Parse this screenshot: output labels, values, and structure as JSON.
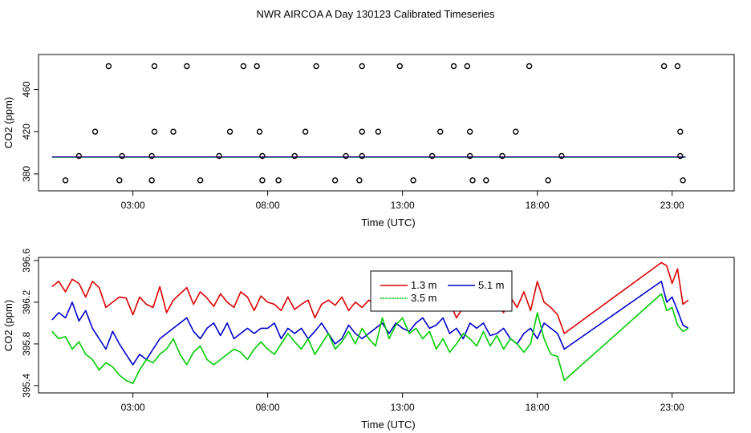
{
  "title": "NWR AIRCOA A  Day 130123  Calibrated Timeseries",
  "chart_data": [
    {
      "type": "scatter",
      "xlabel": "Time (UTC)",
      "ylabel": "CO2 (ppm)",
      "xlim": [
        -0.5,
        25.3
      ],
      "ylim": [
        364,
        493
      ],
      "x_ticks": [
        3,
        8,
        13,
        18,
        23
      ],
      "x_tick_labels": [
        "03:00",
        "08:00",
        "13:00",
        "18:00",
        "23:00"
      ],
      "y_ticks": [
        380,
        420,
        460
      ],
      "y_tick_labels": [
        "380",
        "420",
        "460"
      ],
      "points": [
        {
          "x": 2.1,
          "y": 482
        },
        {
          "x": 3.8,
          "y": 482
        },
        {
          "x": 5.0,
          "y": 482
        },
        {
          "x": 7.1,
          "y": 482
        },
        {
          "x": 7.6,
          "y": 482
        },
        {
          "x": 9.8,
          "y": 482
        },
        {
          "x": 11.5,
          "y": 482
        },
        {
          "x": 12.9,
          "y": 482
        },
        {
          "x": 14.9,
          "y": 482
        },
        {
          "x": 15.4,
          "y": 482
        },
        {
          "x": 17.7,
          "y": 482
        },
        {
          "x": 22.7,
          "y": 482
        },
        {
          "x": 23.2,
          "y": 482
        },
        {
          "x": 1.6,
          "y": 420
        },
        {
          "x": 3.8,
          "y": 420
        },
        {
          "x": 4.5,
          "y": 420
        },
        {
          "x": 6.6,
          "y": 420
        },
        {
          "x": 7.7,
          "y": 420
        },
        {
          "x": 9.4,
          "y": 420
        },
        {
          "x": 11.5,
          "y": 420
        },
        {
          "x": 12.1,
          "y": 420
        },
        {
          "x": 14.4,
          "y": 420
        },
        {
          "x": 15.5,
          "y": 420
        },
        {
          "x": 17.2,
          "y": 420
        },
        {
          "x": 23.3,
          "y": 420
        },
        {
          "x": 1.0,
          "y": 397
        },
        {
          "x": 2.6,
          "y": 397
        },
        {
          "x": 3.7,
          "y": 397
        },
        {
          "x": 6.2,
          "y": 397
        },
        {
          "x": 7.8,
          "y": 397
        },
        {
          "x": 9.0,
          "y": 397
        },
        {
          "x": 10.9,
          "y": 397
        },
        {
          "x": 11.5,
          "y": 397
        },
        {
          "x": 14.1,
          "y": 397
        },
        {
          "x": 15.5,
          "y": 397
        },
        {
          "x": 16.7,
          "y": 397
        },
        {
          "x": 18.9,
          "y": 397
        },
        {
          "x": 23.3,
          "y": 397
        },
        {
          "x": 0.5,
          "y": 374
        },
        {
          "x": 2.5,
          "y": 374
        },
        {
          "x": 3.7,
          "y": 374
        },
        {
          "x": 5.5,
          "y": 374
        },
        {
          "x": 7.8,
          "y": 374
        },
        {
          "x": 8.4,
          "y": 374
        },
        {
          "x": 10.5,
          "y": 374
        },
        {
          "x": 11.4,
          "y": 374
        },
        {
          "x": 13.4,
          "y": 374
        },
        {
          "x": 15.6,
          "y": 374
        },
        {
          "x": 16.1,
          "y": 374
        },
        {
          "x": 18.4,
          "y": 374
        },
        {
          "x": 23.4,
          "y": 374
        }
      ],
      "lines": [
        {
          "name": "1.3 m",
          "color": "#dd0000",
          "x": [
            0,
            23.5
          ],
          "y": [
            396.2,
            396.2
          ]
        },
        {
          "name": "3.5 m",
          "color": "#00cc00",
          "x": [
            0,
            23.5
          ],
          "y": [
            395.8,
            395.8
          ]
        },
        {
          "name": "5.1 m",
          "color": "#0000cc",
          "x": [
            0,
            23.5
          ],
          "y": [
            396.0,
            396.0
          ]
        }
      ]
    },
    {
      "type": "line",
      "xlabel": "Time (UTC)",
      "ylabel": "CO2 (ppm)",
      "xlim": [
        -0.5,
        25.3
      ],
      "ylim": [
        395.33,
        396.63
      ],
      "x_ticks": [
        3,
        8,
        13,
        18,
        23
      ],
      "x_tick_labels": [
        "03:00",
        "08:00",
        "13:00",
        "18:00",
        "23:00"
      ],
      "y_ticks": [
        395.4,
        395.8,
        396.2,
        396.6
      ],
      "y_tick_labels": [
        "395.4",
        "395.8",
        "396.2",
        "396.6"
      ],
      "legend": [
        {
          "label": "1.3 m",
          "color": "#dd0000"
        },
        {
          "label": "5.1 m",
          "color": "#0000cc"
        },
        {
          "label": "3.5 m",
          "color": "#00cc00"
        }
      ],
      "series": [
        {
          "name": "1.3 m",
          "color": "#dd0000",
          "x": [
            0.0,
            0.25,
            0.5,
            0.75,
            1.0,
            1.25,
            1.5,
            1.75,
            2.0,
            2.25,
            2.5,
            2.75,
            3.0,
            3.25,
            3.5,
            3.75,
            4.0,
            4.25,
            4.5,
            4.75,
            5.0,
            5.25,
            5.5,
            5.75,
            6.0,
            6.25,
            6.5,
            6.75,
            7.0,
            7.25,
            7.5,
            7.75,
            8.0,
            8.25,
            8.5,
            8.75,
            9.0,
            9.25,
            9.5,
            9.75,
            10.0,
            10.25,
            10.5,
            10.75,
            11.0,
            11.25,
            11.5,
            11.75,
            12.0,
            12.25,
            12.5,
            12.75,
            13.0,
            13.25,
            13.5,
            13.75,
            14.0,
            14.25,
            14.5,
            14.75,
            15.0,
            15.25,
            15.5,
            15.75,
            16.0,
            16.25,
            16.5,
            16.75,
            17.0,
            17.25,
            17.5,
            17.75,
            18.0,
            18.25,
            18.5,
            18.75,
            19.0,
            22.6,
            22.8,
            23.0,
            23.2,
            23.4,
            23.6
          ],
          "y": [
            396.35,
            396.4,
            396.3,
            396.42,
            396.38,
            396.25,
            396.4,
            396.34,
            396.15,
            396.2,
            396.25,
            396.24,
            396.08,
            396.25,
            396.18,
            396.15,
            396.35,
            396.1,
            396.22,
            396.28,
            396.34,
            396.18,
            396.3,
            396.24,
            396.16,
            396.28,
            396.2,
            396.15,
            396.3,
            396.25,
            396.12,
            396.26,
            396.2,
            396.18,
            396.12,
            396.25,
            396.13,
            396.18,
            396.22,
            396.05,
            396.18,
            396.22,
            396.17,
            396.25,
            396.12,
            396.2,
            396.15,
            396.22,
            396.17,
            396.3,
            396.22,
            396.32,
            396.28,
            396.2,
            396.26,
            396.3,
            396.2,
            396.18,
            396.27,
            396.2,
            396.05,
            396.15,
            396.2,
            396.27,
            396.15,
            396.23,
            396.18,
            396.1,
            396.25,
            396.15,
            396.3,
            396.12,
            396.4,
            396.2,
            396.15,
            396.08,
            395.9,
            396.58,
            396.55,
            396.38,
            396.52,
            396.18,
            396.22
          ]
        },
        {
          "name": "5.1 m",
          "color": "#0000cc",
          "x": [
            0.0,
            0.25,
            0.5,
            0.75,
            1.0,
            1.25,
            1.5,
            1.75,
            2.0,
            2.25,
            2.5,
            2.75,
            3.0,
            3.25,
            3.5,
            3.75,
            4.0,
            4.25,
            4.5,
            4.75,
            5.0,
            5.25,
            5.5,
            5.75,
            6.0,
            6.25,
            6.5,
            6.75,
            7.0,
            7.25,
            7.5,
            7.75,
            8.0,
            8.25,
            8.5,
            8.75,
            9.0,
            9.25,
            9.5,
            9.75,
            10.0,
            10.25,
            10.5,
            10.75,
            11.0,
            11.25,
            11.5,
            11.75,
            12.0,
            12.25,
            12.5,
            12.75,
            13.0,
            13.25,
            13.5,
            13.75,
            14.0,
            14.25,
            14.5,
            14.75,
            15.0,
            15.25,
            15.5,
            15.75,
            16.0,
            16.25,
            16.5,
            16.75,
            17.0,
            17.25,
            17.5,
            17.75,
            18.0,
            18.25,
            18.5,
            18.75,
            19.0,
            22.6,
            22.8,
            23.0,
            23.2,
            23.4,
            23.6
          ],
          "y": [
            396.03,
            396.1,
            396.05,
            396.2,
            396.02,
            396.12,
            395.95,
            395.85,
            395.75,
            395.92,
            395.8,
            395.7,
            395.6,
            395.7,
            395.65,
            395.75,
            395.85,
            395.9,
            395.95,
            396.0,
            396.05,
            395.92,
            395.85,
            395.95,
            396.0,
            395.88,
            396.0,
            395.85,
            395.9,
            395.95,
            395.9,
            395.95,
            395.95,
            396.0,
            395.85,
            395.95,
            395.9,
            395.95,
            395.85,
            395.92,
            396.0,
            395.9,
            395.8,
            395.85,
            395.98,
            395.9,
            395.85,
            395.9,
            395.95,
            396.0,
            395.9,
            396.0,
            395.95,
            395.92,
            396.0,
            396.05,
            395.95,
            395.98,
            396.05,
            395.9,
            395.95,
            395.85,
            396.0,
            395.95,
            396.0,
            395.88,
            395.9,
            395.95,
            395.85,
            395.8,
            395.9,
            395.95,
            395.85,
            396.0,
            395.95,
            395.9,
            395.75,
            396.4,
            396.2,
            396.25,
            396.12,
            395.98,
            395.95
          ]
        },
        {
          "name": "3.5 m",
          "color": "#00cc00",
          "x": [
            0.0,
            0.25,
            0.5,
            0.75,
            1.0,
            1.25,
            1.5,
            1.75,
            2.0,
            2.25,
            2.5,
            2.75,
            3.0,
            3.25,
            3.5,
            3.75,
            4.0,
            4.25,
            4.5,
            4.75,
            5.0,
            5.25,
            5.5,
            5.75,
            6.0,
            6.25,
            6.5,
            6.75,
            7.0,
            7.25,
            7.5,
            7.75,
            8.0,
            8.25,
            8.5,
            8.75,
            9.0,
            9.25,
            9.5,
            9.75,
            10.0,
            10.25,
            10.5,
            10.75,
            11.0,
            11.25,
            11.5,
            11.75,
            12.0,
            12.25,
            12.5,
            12.75,
            13.0,
            13.25,
            13.5,
            13.75,
            14.0,
            14.25,
            14.5,
            14.75,
            15.0,
            15.25,
            15.5,
            15.75,
            16.0,
            16.25,
            16.5,
            16.75,
            17.0,
            17.25,
            17.5,
            17.75,
            18.0,
            18.25,
            18.5,
            18.75,
            19.0,
            22.6,
            22.8,
            23.0,
            23.2,
            23.4,
            23.6
          ],
          "y": [
            395.92,
            395.85,
            395.87,
            395.75,
            395.82,
            395.7,
            395.65,
            395.55,
            395.62,
            395.58,
            395.5,
            395.45,
            395.42,
            395.55,
            395.65,
            395.62,
            395.7,
            395.75,
            395.85,
            395.7,
            395.6,
            395.72,
            395.78,
            395.65,
            395.6,
            395.65,
            395.7,
            395.75,
            395.72,
            395.65,
            395.75,
            395.82,
            395.75,
            395.7,
            395.8,
            395.9,
            395.82,
            395.75,
            395.85,
            395.7,
            395.8,
            395.9,
            395.75,
            395.82,
            395.92,
            395.8,
            395.95,
            395.85,
            395.78,
            396.05,
            395.85,
            395.98,
            396.05,
            395.9,
            395.95,
            395.85,
            395.92,
            395.75,
            395.85,
            395.72,
            395.8,
            395.9,
            395.85,
            395.78,
            395.92,
            395.78,
            395.88,
            395.75,
            395.85,
            395.8,
            395.72,
            395.8,
            396.1,
            395.85,
            395.7,
            395.68,
            395.45,
            396.28,
            396.12,
            396.15,
            395.98,
            395.92,
            395.95
          ]
        }
      ]
    }
  ]
}
